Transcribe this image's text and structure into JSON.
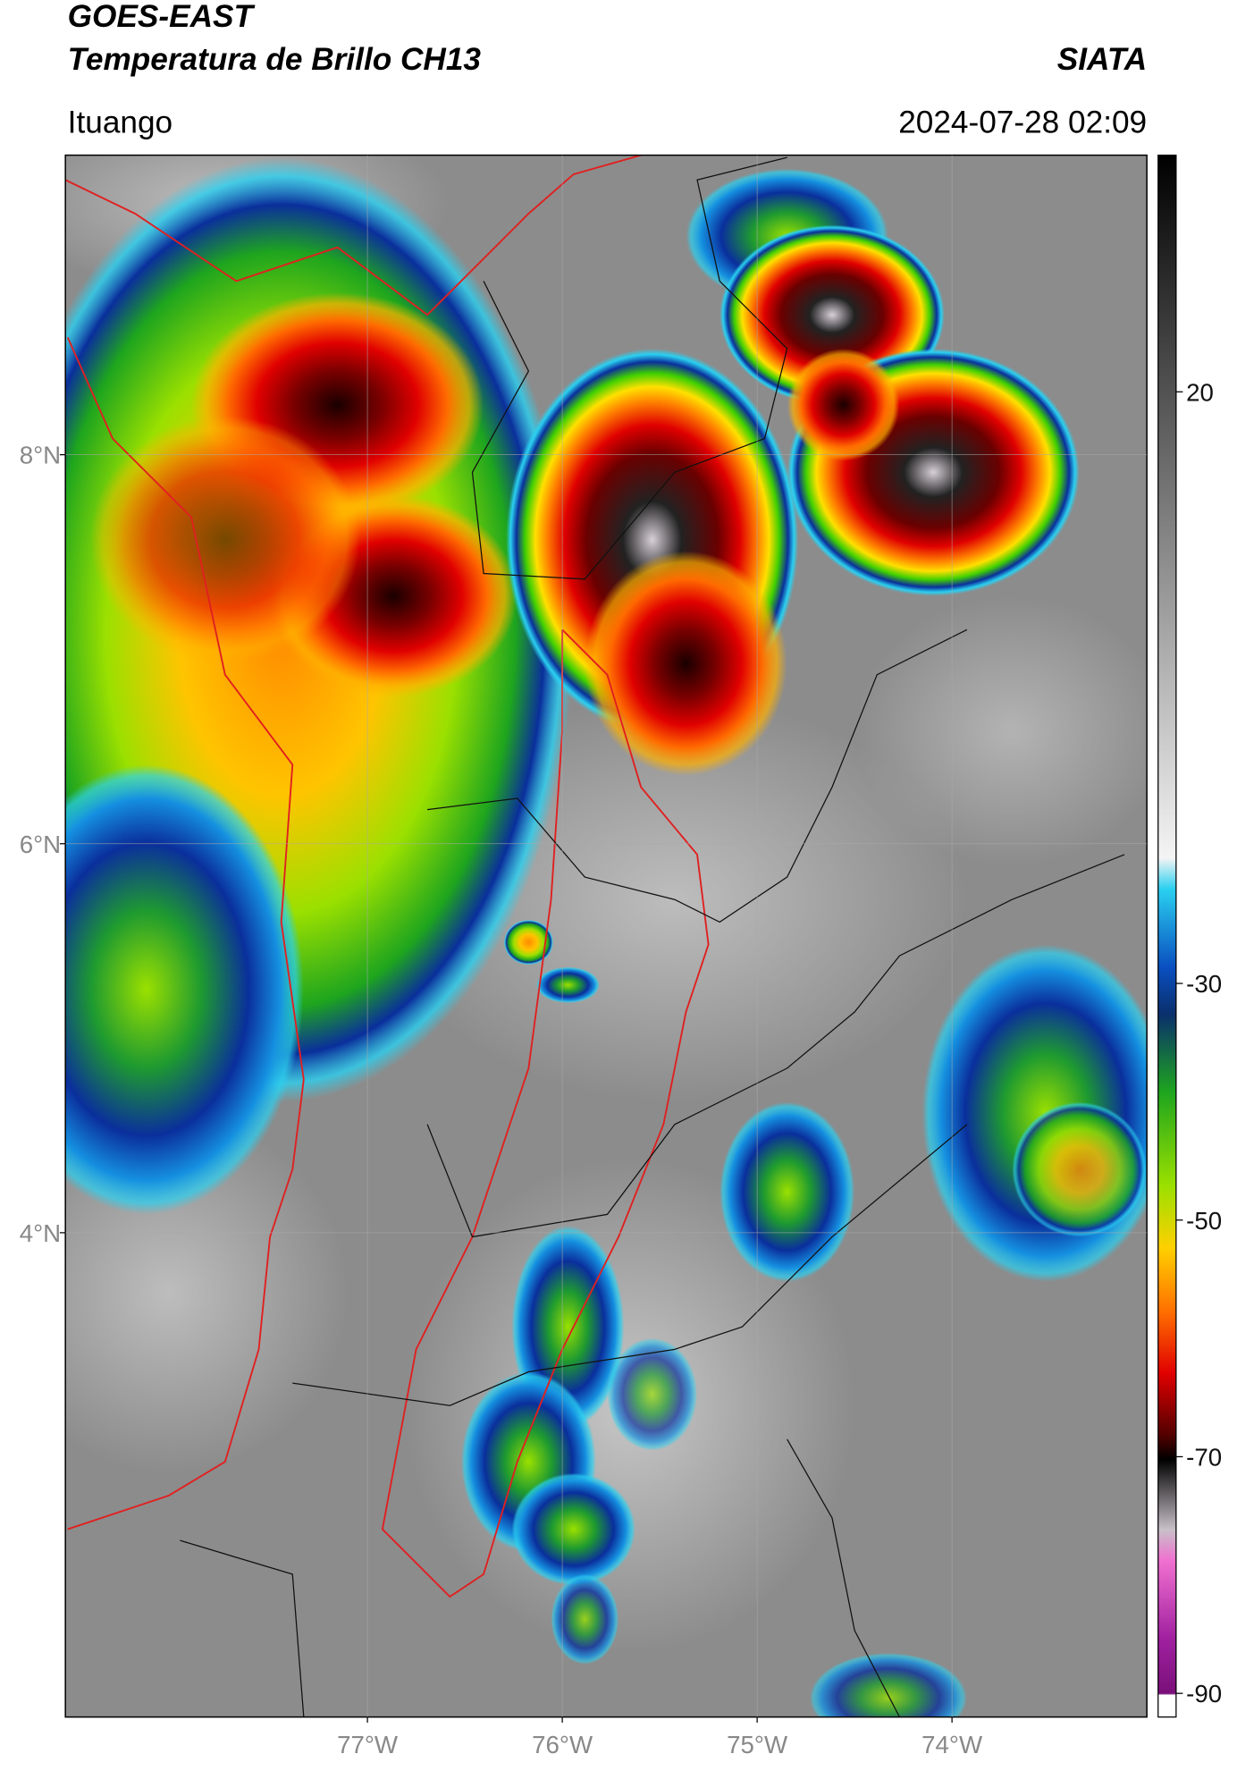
{
  "header": {
    "title": "GOES-EAST",
    "subtitle": "Temperatura de Brillo CH13",
    "source": "SIATA",
    "location": "Ituango",
    "datetime": "2024-07-28 02:09"
  },
  "map": {
    "xlim": [
      -78.55,
      -73.0
    ],
    "ylim": [
      1.51,
      9.54
    ],
    "xticks": [
      {
        "value": -77,
        "label": "77°W"
      },
      {
        "value": -76,
        "label": "76°W"
      },
      {
        "value": -75,
        "label": "75°W"
      },
      {
        "value": -74,
        "label": "74°W"
      }
    ],
    "yticks": [
      {
        "value": 4,
        "label": "4°N"
      },
      {
        "value": 6,
        "label": "6°N"
      },
      {
        "value": 8,
        "label": "8°N"
      }
    ],
    "grid": true
  },
  "colorbar": {
    "lim": [
      -92,
      40
    ],
    "ticks": [
      -90,
      -70,
      -50,
      -30,
      20
    ]
  }
}
